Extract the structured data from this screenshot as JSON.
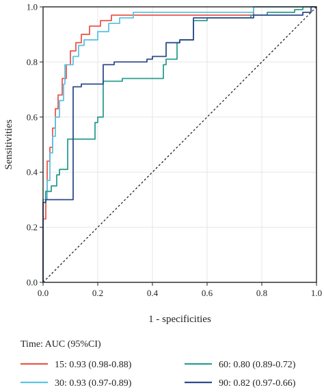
{
  "chart_data": {
    "type": "line",
    "xlabel": "1 - specificities",
    "ylabel": "Sensitivities",
    "xlim": [
      0,
      1
    ],
    "ylim": [
      0,
      1
    ],
    "x_ticks": [
      "0.0",
      "0.2",
      "0.4",
      "0.6",
      "0.8",
      "1.0"
    ],
    "y_ticks": [
      "0.0",
      "0.2",
      "0.4",
      "0.6",
      "0.8",
      "1.0"
    ],
    "grid": true,
    "diagonal_reference": true,
    "legend_title": "Time: AUC (95%CI)",
    "legend_position": "bottom",
    "series": [
      {
        "name": "15: 0.93 (0.98-0.88)",
        "color": "#e8574a",
        "points": [
          [
            0,
            0
          ],
          [
            0,
            0.23
          ],
          [
            0.01,
            0.23
          ],
          [
            0.01,
            0.33
          ],
          [
            0.015,
            0.33
          ],
          [
            0.015,
            0.44
          ],
          [
            0.025,
            0.44
          ],
          [
            0.025,
            0.49
          ],
          [
            0.03,
            0.49
          ],
          [
            0.035,
            0.49
          ],
          [
            0.035,
            0.56
          ],
          [
            0.045,
            0.56
          ],
          [
            0.045,
            0.63
          ],
          [
            0.055,
            0.63
          ],
          [
            0.055,
            0.68
          ],
          [
            0.07,
            0.68
          ],
          [
            0.07,
            0.74
          ],
          [
            0.085,
            0.74
          ],
          [
            0.085,
            0.79
          ],
          [
            0.1,
            0.79
          ],
          [
            0.1,
            0.84
          ],
          [
            0.12,
            0.84
          ],
          [
            0.12,
            0.87
          ],
          [
            0.14,
            0.87
          ],
          [
            0.14,
            0.9
          ],
          [
            0.17,
            0.9
          ],
          [
            0.17,
            0.93
          ],
          [
            0.21,
            0.93
          ],
          [
            0.21,
            0.95
          ],
          [
            0.25,
            0.95
          ],
          [
            0.25,
            0.97
          ],
          [
            0.77,
            0.97
          ],
          [
            0.77,
            1.0
          ],
          [
            1.0,
            1.0
          ]
        ]
      },
      {
        "name": "30: 0.93 (0.97-0.89)",
        "color": "#5bc3e3",
        "points": [
          [
            0,
            0
          ],
          [
            0,
            0.3
          ],
          [
            0.015,
            0.3
          ],
          [
            0.015,
            0.37
          ],
          [
            0.025,
            0.37
          ],
          [
            0.025,
            0.47
          ],
          [
            0.035,
            0.47
          ],
          [
            0.035,
            0.53
          ],
          [
            0.045,
            0.53
          ],
          [
            0.045,
            0.6
          ],
          [
            0.06,
            0.6
          ],
          [
            0.06,
            0.66
          ],
          [
            0.075,
            0.66
          ],
          [
            0.075,
            0.72
          ],
          [
            0.08,
            0.72
          ],
          [
            0.08,
            0.79
          ],
          [
            0.11,
            0.79
          ],
          [
            0.11,
            0.82
          ],
          [
            0.13,
            0.82
          ],
          [
            0.13,
            0.86
          ],
          [
            0.15,
            0.86
          ],
          [
            0.15,
            0.88
          ],
          [
            0.2,
            0.88
          ],
          [
            0.2,
            0.91
          ],
          [
            0.24,
            0.91
          ],
          [
            0.24,
            0.94
          ],
          [
            0.28,
            0.94
          ],
          [
            0.28,
            0.96
          ],
          [
            0.33,
            0.96
          ],
          [
            0.33,
            0.98
          ],
          [
            0.77,
            0.98
          ],
          [
            0.77,
            1.0
          ],
          [
            1.0,
            1.0
          ]
        ]
      },
      {
        "name": "60: 0.80 (0.89-0.72)",
        "color": "#2a9d8f",
        "points": [
          [
            0,
            0
          ],
          [
            0,
            0.29
          ],
          [
            0.01,
            0.29
          ],
          [
            0.01,
            0.33
          ],
          [
            0.03,
            0.33
          ],
          [
            0.03,
            0.35
          ],
          [
            0.05,
            0.35
          ],
          [
            0.05,
            0.39
          ],
          [
            0.06,
            0.39
          ],
          [
            0.06,
            0.41
          ],
          [
            0.09,
            0.41
          ],
          [
            0.09,
            0.52
          ],
          [
            0.19,
            0.52
          ],
          [
            0.19,
            0.58
          ],
          [
            0.2,
            0.58
          ],
          [
            0.2,
            0.6
          ],
          [
            0.22,
            0.6
          ],
          [
            0.22,
            0.73
          ],
          [
            0.29,
            0.73
          ],
          [
            0.29,
            0.74
          ],
          [
            0.44,
            0.74
          ],
          [
            0.44,
            0.79
          ],
          [
            0.45,
            0.79
          ],
          [
            0.45,
            0.81
          ],
          [
            0.49,
            0.81
          ],
          [
            0.49,
            0.87
          ],
          [
            0.5,
            0.87
          ],
          [
            0.5,
            0.88
          ],
          [
            0.55,
            0.88
          ],
          [
            0.55,
            0.95
          ],
          [
            0.6,
            0.95
          ],
          [
            0.6,
            0.96
          ],
          [
            0.76,
            0.96
          ],
          [
            0.76,
            0.97
          ],
          [
            0.82,
            0.97
          ],
          [
            0.82,
            0.98
          ],
          [
            0.92,
            0.98
          ],
          [
            0.92,
            0.99
          ],
          [
            0.95,
            0.99
          ],
          [
            0.95,
            1.0
          ],
          [
            1.0,
            1.0
          ]
        ]
      },
      {
        "name": "90: 0.82 (0.97-0.66)",
        "color": "#2f4a8a",
        "points": [
          [
            0,
            0
          ],
          [
            0,
            0.29
          ],
          [
            0.01,
            0.29
          ],
          [
            0.01,
            0.3
          ],
          [
            0.11,
            0.3
          ],
          [
            0.11,
            0.71
          ],
          [
            0.14,
            0.71
          ],
          [
            0.14,
            0.72
          ],
          [
            0.22,
            0.72
          ],
          [
            0.22,
            0.79
          ],
          [
            0.26,
            0.79
          ],
          [
            0.26,
            0.8
          ],
          [
            0.38,
            0.8
          ],
          [
            0.38,
            0.81
          ],
          [
            0.4,
            0.81
          ],
          [
            0.4,
            0.82
          ],
          [
            0.45,
            0.82
          ],
          [
            0.45,
            0.87
          ],
          [
            0.5,
            0.87
          ],
          [
            0.5,
            0.88
          ],
          [
            0.55,
            0.88
          ],
          [
            0.55,
            0.96
          ],
          [
            0.77,
            0.96
          ],
          [
            0.77,
            0.97
          ],
          [
            0.95,
            0.97
          ],
          [
            0.95,
            0.98
          ],
          [
            0.98,
            0.98
          ],
          [
            0.98,
            1.0
          ],
          [
            1.0,
            1.0
          ]
        ]
      }
    ]
  }
}
